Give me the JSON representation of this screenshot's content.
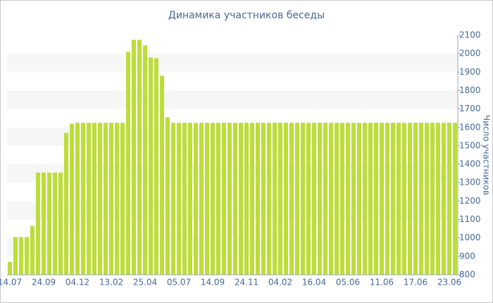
{
  "chart_data": {
    "type": "bar",
    "title": "Динамика участников беседы",
    "y_label": "Число участников",
    "categories": [
      "14.07",
      null,
      null,
      null,
      null,
      null,
      "24.09",
      null,
      null,
      null,
      null,
      null,
      "04.12",
      null,
      null,
      null,
      null,
      null,
      "13.02",
      null,
      null,
      null,
      null,
      null,
      "25.04",
      null,
      null,
      null,
      null,
      null,
      "05.07",
      null,
      null,
      null,
      null,
      null,
      "14.09",
      null,
      null,
      null,
      null,
      null,
      "24.11",
      null,
      null,
      null,
      null,
      null,
      "04.02",
      null,
      null,
      null,
      null,
      null,
      "16.04",
      null,
      null,
      null,
      null,
      null,
      "05.06",
      null,
      null,
      null,
      null,
      null,
      "11.06",
      null,
      null,
      null,
      null,
      null,
      "17.06",
      null,
      null,
      null,
      null,
      null,
      "23.06",
      null
    ],
    "values": [
      870,
      1005,
      1005,
      1005,
      1065,
      1355,
      1355,
      1355,
      1355,
      1355,
      1570,
      1620,
      1625,
      1625,
      1625,
      1625,
      1625,
      1625,
      1625,
      1625,
      1625,
      2010,
      2075,
      2075,
      2045,
      1980,
      1975,
      1880,
      1655,
      1625,
      1625,
      1625,
      1625,
      1625,
      1625,
      1625,
      1625,
      1625,
      1625,
      1625,
      1625,
      1625,
      1625,
      1625,
      1625,
      1625,
      1625,
      1625,
      1625,
      1625,
      1625,
      1625,
      1625,
      1625,
      1625,
      1625,
      1625,
      1625,
      1625,
      1625,
      1625,
      1625,
      1625,
      1625,
      1625,
      1625,
      1625,
      1625,
      1625,
      1625,
      1625,
      1625,
      1625,
      1625,
      1625,
      1625,
      1625,
      1625,
      1625,
      1625
    ],
    "color": "#bddd3a",
    "ylim": [
      800,
      2100
    ],
    "yticks": [
      800,
      900,
      1000,
      1100,
      1200,
      1300,
      1400,
      1500,
      1600,
      1700,
      1800,
      1900,
      2000,
      2100
    ],
    "grid": true
  }
}
